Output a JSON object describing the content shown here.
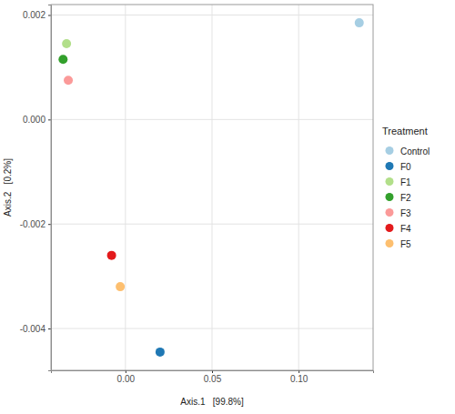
{
  "chart_data": {
    "type": "scatter",
    "x_label": "Axis.1   [99.8%]",
    "y_label": "Axis.2   [0.2%]",
    "legend_title": "Treatment",
    "legend": "right",
    "grid": true,
    "marker": "circle",
    "xlim": [
      -0.043,
      0.143
    ],
    "ylim": [
      -0.0048,
      0.0022
    ],
    "xticks": [
      {
        "value": 0,
        "label": "0.00"
      },
      {
        "value": 0.05,
        "label": "0.05"
      },
      {
        "value": 0.1,
        "label": "0.10"
      }
    ],
    "yticks": [
      {
        "value": -0.004,
        "label": "-0.004"
      },
      {
        "value": -0.002,
        "label": "-0.002"
      },
      {
        "value": 0,
        "label": "0.000"
      },
      {
        "value": 0.002,
        "label": "0.002"
      }
    ],
    "series": [
      {
        "name": "Control",
        "color": "#a6cee3",
        "x": [
          0.135
        ],
        "values": [
          0.00185
        ]
      },
      {
        "name": "F0",
        "color": "#1f78b4",
        "x": [
          0.02
        ],
        "values": [
          -0.00445
        ]
      },
      {
        "name": "F1",
        "color": "#b2df8a",
        "x": [
          -0.034
        ],
        "values": [
          0.00145
        ]
      },
      {
        "name": "F2",
        "color": "#33a02c",
        "x": [
          -0.036
        ],
        "values": [
          0.00115
        ]
      },
      {
        "name": "F3",
        "color": "#fb9a99",
        "x": [
          -0.033
        ],
        "values": [
          0.00075
        ]
      },
      {
        "name": "F4",
        "color": "#e31a1c",
        "x": [
          -0.008
        ],
        "values": [
          -0.0026
        ]
      },
      {
        "name": "F5",
        "color": "#fdbf6f",
        "x": [
          -0.003
        ],
        "values": [
          -0.0032
        ]
      }
    ]
  }
}
